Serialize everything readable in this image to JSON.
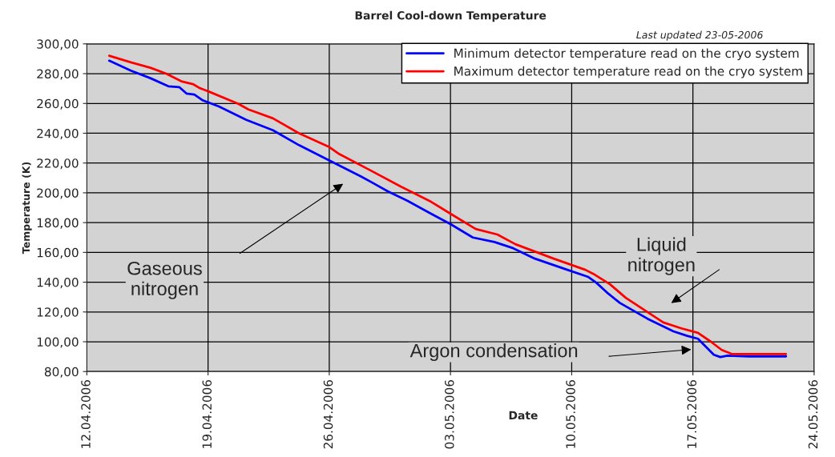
{
  "chart_data": {
    "type": "line",
    "title": "Barrel Cool-down Temperature",
    "xlabel": "Date",
    "ylabel": "Temperature (K)",
    "annotations": [
      "Last updated 23-05-2006",
      "Gaseous\nnitrogen",
      "Liquid\nnitrogen",
      "Argon condensation"
    ],
    "series": [
      {
        "name": "Minimum detector temperature read on the cryo system",
        "color": "#0000ff",
        "x": [
          "2006-04-13T07:00",
          "2006-04-14T13:00",
          "2006-04-15T16:00",
          "2006-04-16T17:00",
          "2006-04-17T08:00",
          "2006-04-17T18:00",
          "2006-04-18T05:00",
          "2006-04-18T17:00",
          "2006-04-19T15:00",
          "2006-04-21T05:00",
          "2006-04-22T18:00",
          "2006-04-24T06:00",
          "2006-04-25T23:00",
          "2006-04-27T20:00",
          "2006-04-28T11:00",
          "2006-04-29T09:00",
          "2006-04-30T11:00",
          "2006-05-01T21:00",
          "2006-05-03T00:00",
          "2006-05-04T07:00",
          "2006-05-05T13:00",
          "2006-05-06T15:00",
          "2006-05-07T21:00",
          "2006-05-09T18:00",
          "2006-05-10T23:00",
          "2006-05-11T10:00",
          "2006-05-12T01:00",
          "2006-05-12T19:00",
          "2006-05-14T09:00",
          "2006-05-15T21:00",
          "2006-05-16T16:00",
          "2006-05-17T07:00",
          "2006-05-17T18:00",
          "2006-05-18T05:00",
          "2006-05-18T14:00",
          "2006-05-19T00:00",
          "2006-05-20T05:00",
          "2006-05-22T09:00"
        ],
        "values": [
          288.7,
          282,
          277,
          271.5,
          271,
          266.7,
          266,
          262,
          258,
          249,
          242,
          232,
          222,
          211,
          207,
          201,
          195,
          186,
          179,
          170,
          167,
          162.8,
          155.8,
          148.3,
          143.5,
          139.7,
          133,
          126,
          115.5,
          107,
          104,
          102,
          96.7,
          91.3,
          89.7,
          90.7,
          90.2,
          90.2
        ]
      },
      {
        "name": "Maximum detector temperature read on the cryo system",
        "color": "#ff0000",
        "x": [
          "2006-04-13T07:00",
          "2006-04-14T13:00",
          "2006-04-15T16:00",
          "2006-04-16T14:00",
          "2006-04-17T12:00",
          "2006-04-18T03:00",
          "2006-04-18T12:00",
          "2006-04-19T01:00",
          "2006-04-20T18:00",
          "2006-04-21T08:00",
          "2006-04-22T18:00",
          "2006-04-24T06:00",
          "2006-04-25T23:00",
          "2006-04-26T14:00",
          "2006-04-28T07:00",
          "2006-04-30T04:00",
          "2006-05-01T21:00",
          "2006-05-03T00:00",
          "2006-05-04T11:00",
          "2006-05-05T17:00",
          "2006-05-06T18:00",
          "2006-05-08T23:00",
          "2006-05-10T19:00",
          "2006-05-11T06:00",
          "2006-05-12T05:00",
          "2006-05-13T03:00",
          "2006-05-15T07:00",
          "2006-05-16T08:00",
          "2006-05-17T07:00",
          "2006-05-18T01:00",
          "2006-05-18T16:00",
          "2006-05-19T06:00",
          "2006-05-22T09:00"
        ],
        "values": [
          292,
          287.6,
          284,
          280,
          274.7,
          273,
          270.4,
          268,
          259.7,
          256,
          250,
          240,
          231,
          226,
          215.6,
          204,
          194,
          186,
          175.7,
          172,
          165.5,
          155.8,
          148.3,
          145.6,
          138.6,
          129.5,
          113,
          109,
          106,
          100,
          94.5,
          91.8,
          91.8
        ]
      }
    ],
    "xlim": [
      "2006-04-12",
      "2006-05-24"
    ],
    "xticks": [
      {
        "value": "2006-04-12",
        "label": "12.04.2006"
      },
      {
        "value": "2006-04-19",
        "label": "19.04.2006"
      },
      {
        "value": "2006-04-26",
        "label": "26.04.2006"
      },
      {
        "value": "2006-05-03",
        "label": "03.05.2006"
      },
      {
        "value": "2006-05-10",
        "label": "10.05.2006"
      },
      {
        "value": "2006-05-17",
        "label": "17.05.2006"
      },
      {
        "value": "2006-05-24",
        "label": "24.05.2006"
      }
    ],
    "ylim": [
      80,
      300
    ],
    "yticks": [
      {
        "value": 80,
        "label": "80,00"
      },
      {
        "value": 100,
        "label": "100,00"
      },
      {
        "value": 120,
        "label": "120,00"
      },
      {
        "value": 140,
        "label": "140,00"
      },
      {
        "value": 160,
        "label": "160,00"
      },
      {
        "value": 180,
        "label": "180,00"
      },
      {
        "value": 200,
        "label": "200,00"
      },
      {
        "value": 220,
        "label": "220,00"
      },
      {
        "value": 240,
        "label": "240,00"
      },
      {
        "value": 260,
        "label": "260,00"
      },
      {
        "value": 280,
        "label": "280,00"
      },
      {
        "value": 300,
        "label": "300,00"
      }
    ],
    "grid": true,
    "legend": "top right",
    "marker": "none",
    "line_style": "solid"
  }
}
